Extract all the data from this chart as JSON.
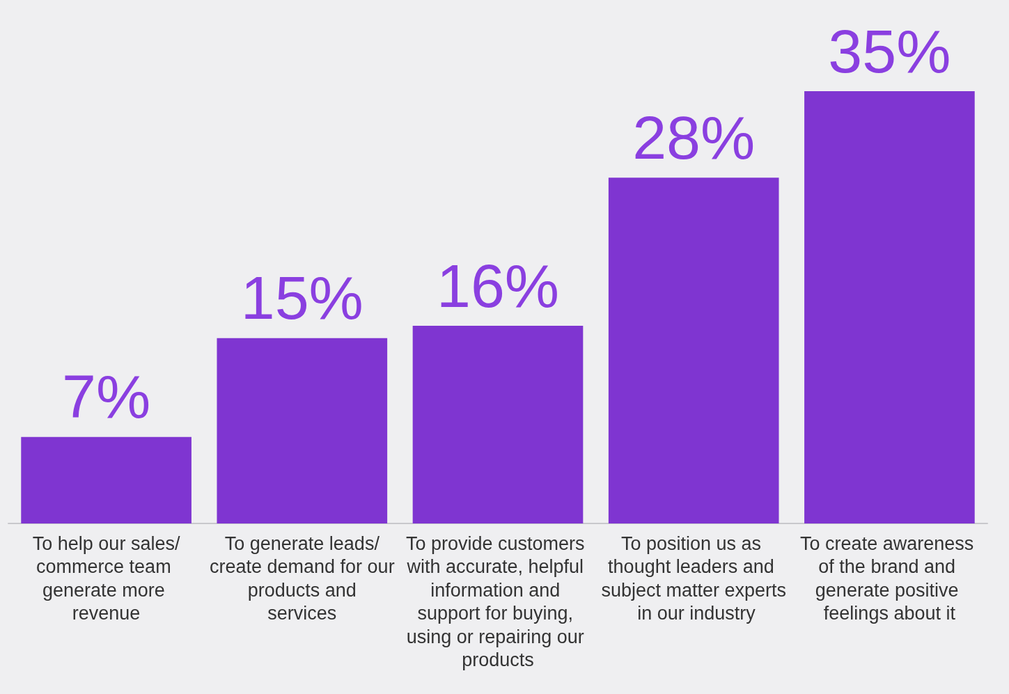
{
  "chart_data": {
    "type": "bar",
    "categories": [
      "To help our sales/commerce team generate more revenue",
      "To generate leads/create demand for our products and services",
      "To provide customers with accurate, helpful information and support for buying, using or repairing our products",
      "To position us as thought leaders and subject matter experts in our industry",
      "To create awareness of the brand and generate positive feelings about it"
    ],
    "values": [
      7,
      15,
      16,
      28,
      35
    ],
    "value_labels": [
      "7%",
      "15%",
      "16%",
      "28%",
      "35%"
    ],
    "color": "#7f35d1"
  }
}
